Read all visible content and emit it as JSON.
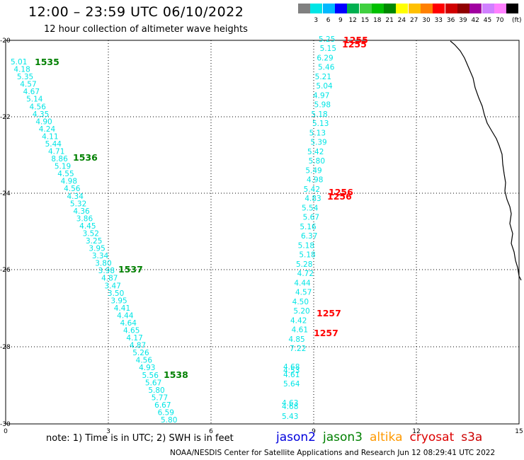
{
  "header": {
    "title": "12:00 – 23:59 UTC 06/10/2022",
    "subtitle": "12 hour collection of altimeter wave heights"
  },
  "legend": {
    "unit": "(ft)",
    "items": [
      {
        "label": "",
        "color": "#808080"
      },
      {
        "label": "3",
        "color": "#00e5e5"
      },
      {
        "label": "6",
        "color": "#00b8ff"
      },
      {
        "label": "9",
        "color": "#0000ff"
      },
      {
        "label": "12",
        "color": "#00b050"
      },
      {
        "label": "15",
        "color": "#40d040"
      },
      {
        "label": "18",
        "color": "#00c000"
      },
      {
        "label": "21",
        "color": "#008800"
      },
      {
        "label": "24",
        "color": "#ffff00"
      },
      {
        "label": "27",
        "color": "#ffc000"
      },
      {
        "label": "30",
        "color": "#ff8000"
      },
      {
        "label": "33",
        "color": "#ff0000"
      },
      {
        "label": "36",
        "color": "#d00000"
      },
      {
        "label": "39",
        "color": "#900000"
      },
      {
        "label": "42",
        "color": "#a000a0"
      },
      {
        "label": "45",
        "color": "#d080ff"
      },
      {
        "label": "70",
        "color": "#ff80ff"
      },
      {
        "label": "",
        "color": "#000000"
      }
    ]
  },
  "axes": {
    "x_ticks": [
      "0",
      "3",
      "6",
      "9",
      "12",
      "15"
    ],
    "y_ticks": [
      "-20",
      "-22",
      "-24",
      "-26",
      "-28",
      "-30"
    ]
  },
  "tracks": {
    "west": {
      "color": "#00e5e5",
      "values": [
        "5.01",
        "4.18",
        "5.35",
        "4.57",
        "4.67",
        "5.14",
        "4.56",
        "4.35",
        "4.90",
        "4.24",
        "4.11",
        "5.44",
        "4.71",
        "8.86",
        "5.19",
        "4.55",
        "4.98",
        "4.56",
        "4.34",
        "5.32",
        "4.36",
        "3.86",
        "4.45",
        "3.52",
        "3.25",
        "3.95",
        "3.34",
        "3.80",
        "3.98",
        "4.87",
        "3.47",
        "3.50",
        "3.95",
        "4.41",
        "4.44",
        "4.64",
        "4.65",
        "4.17",
        "4.87",
        "5.26",
        "4.56",
        "4.93",
        "5.56",
        "5.67",
        "5.80",
        "5.77",
        "6.67",
        "6.59",
        "5.80"
      ],
      "pass_labels": [
        {
          "text": "1535",
          "color": "#008000"
        },
        {
          "text": "1536",
          "color": "#008000"
        },
        {
          "text": "1537",
          "color": "#008000"
        },
        {
          "text": "1538",
          "color": "#008000"
        }
      ]
    },
    "east_upper": {
      "color": "#00e5e5",
      "values": [
        "5.25",
        "5.15",
        "6.29",
        "5.46",
        "5.21",
        "5.04",
        "4.97",
        "5.98",
        "5.18",
        "5.13",
        "5.13",
        "5.39",
        "5.42",
        "5.80",
        "5.49",
        "4.98",
        "5.42",
        "4.83",
        "5.54",
        "5.67",
        "5.16",
        "6.37",
        "5.18",
        "5.18",
        "5.28",
        "4.72",
        "4.44",
        "4.57",
        "4.50",
        "5.20",
        "4.42",
        "4.61",
        "4.85",
        "7.22"
      ],
      "pass_labels": [
        {
          "text": "1255",
          "color": "#ff0000"
        },
        {
          "text": "1255",
          "color": "#ff0000"
        },
        {
          "text": "1256",
          "color": "#ff0000"
        },
        {
          "text": "1256",
          "color": "#ff0000"
        },
        {
          "text": "1257",
          "color": "#ff0000"
        },
        {
          "text": "1257",
          "color": "#ff0000"
        }
      ]
    },
    "east_lower": {
      "color": "#00e5e5",
      "values": [
        "4.68",
        "4.53",
        "4.61",
        "5.64",
        "4.63",
        "4.68",
        "5.43"
      ]
    }
  },
  "footer": {
    "note": "note:  1) Time is in UTC;  2) SWH is in feet",
    "missions": [
      {
        "name": "jason2",
        "color": "#0000dd"
      },
      {
        "name": "jason3",
        "color": "#008000"
      },
      {
        "name": "altika",
        "color": "#ff9900"
      },
      {
        "name": "cryosat",
        "color": "#dd0000"
      },
      {
        "name": "s3a",
        "color": "#cc0000"
      }
    ],
    "credit": "NOAA/NESDIS Center for Satellite Applications and Research     Jun 12 08:29:41 UTC 2022"
  }
}
